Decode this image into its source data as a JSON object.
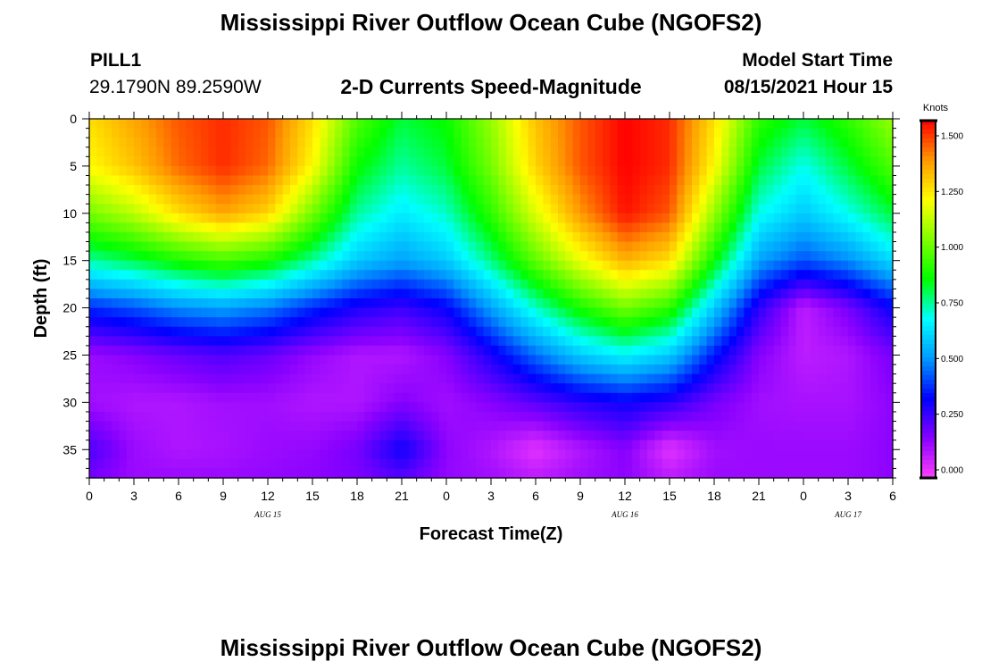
{
  "header": {
    "title_top": "Mississippi River Outflow Ocean Cube (NGOFS2)",
    "station_id": "PILL1",
    "station_coords": "29.1790N  89.2590W",
    "subtitle": "2-D Currents Speed-Magnitude",
    "model_start_label": "Model Start Time",
    "model_start_value": "08/15/2021 Hour 15",
    "title_bottom": "Mississippi River Outflow Ocean Cube (NGOFS2)"
  },
  "chart_data": {
    "type": "heatmap",
    "title": "2-D Currents Speed-Magnitude",
    "xlabel": "Forecast Time(Z)",
    "ylabel": "Depth (ft)",
    "x_tick_labels": [
      "0",
      "3",
      "6",
      "9",
      "12",
      "15",
      "18",
      "21",
      "0",
      "3",
      "6",
      "9",
      "12",
      "15",
      "18",
      "21",
      "0",
      "3",
      "6"
    ],
    "date_labels": [
      {
        "label": "AUG 15",
        "at_hour": 12
      },
      {
        "label": "AUG 16",
        "at_hour": 36
      },
      {
        "label": "AUG 17",
        "at_hour": 51
      }
    ],
    "xlim_hours": [
      0,
      54
    ],
    "y_ticks": [
      0,
      5,
      10,
      15,
      20,
      25,
      30,
      35
    ],
    "ylim": [
      38,
      0
    ],
    "colorbar": {
      "unit": "Knots",
      "ticks": [
        "0.000",
        "0.250",
        "0.500",
        "0.750",
        "1.000",
        "1.250",
        "1.500"
      ],
      "range": [
        0,
        1.6
      ],
      "colors": [
        "#ff40ff",
        "#8800ff",
        "#0000ff",
        "#0099ff",
        "#00ffff",
        "#00ff00",
        "#80ff00",
        "#ffff00",
        "#ff9900",
        "#ff0000"
      ]
    },
    "hours": [
      0,
      3,
      6,
      9,
      12,
      15,
      18,
      21,
      24,
      27,
      30,
      33,
      36,
      39,
      42,
      45,
      48,
      51,
      54
    ],
    "depths_ft": [
      0,
      5,
      10,
      15,
      20,
      25,
      30,
      35,
      38
    ],
    "speed_knots": [
      [
        1.3,
        1.4,
        1.5,
        1.55,
        1.5,
        1.3,
        1.0,
        0.85,
        0.9,
        1.1,
        1.35,
        1.5,
        1.6,
        1.55,
        1.3,
        0.95,
        0.85,
        0.95,
        1.1
      ],
      [
        1.25,
        1.35,
        1.48,
        1.55,
        1.48,
        1.25,
        0.9,
        0.78,
        0.85,
        1.05,
        1.32,
        1.5,
        1.6,
        1.55,
        1.25,
        0.85,
        0.72,
        0.85,
        1.0
      ],
      [
        1.05,
        1.15,
        1.3,
        1.4,
        1.32,
        1.05,
        0.78,
        0.68,
        0.75,
        0.95,
        1.2,
        1.42,
        1.58,
        1.5,
        1.1,
        0.72,
        0.62,
        0.72,
        0.85
      ],
      [
        0.78,
        0.84,
        0.92,
        0.98,
        0.92,
        0.78,
        0.62,
        0.55,
        0.62,
        0.8,
        1.02,
        1.22,
        1.38,
        1.3,
        0.9,
        0.55,
        0.45,
        0.52,
        0.65
      ],
      [
        0.4,
        0.45,
        0.52,
        0.55,
        0.5,
        0.4,
        0.32,
        0.28,
        0.35,
        0.55,
        0.75,
        0.92,
        1.05,
        0.95,
        0.62,
        0.3,
        0.1,
        0.2,
        0.35
      ],
      [
        0.15,
        0.18,
        0.22,
        0.25,
        0.22,
        0.16,
        0.12,
        0.12,
        0.18,
        0.32,
        0.48,
        0.62,
        0.7,
        0.62,
        0.38,
        0.18,
        0.1,
        0.12,
        0.2
      ],
      [
        0.14,
        0.12,
        0.12,
        0.14,
        0.14,
        0.12,
        0.12,
        0.18,
        0.14,
        0.18,
        0.24,
        0.3,
        0.34,
        0.3,
        0.2,
        0.14,
        0.13,
        0.13,
        0.17
      ],
      [
        0.26,
        0.15,
        0.12,
        0.13,
        0.15,
        0.16,
        0.2,
        0.34,
        0.17,
        0.12,
        0.04,
        0.12,
        0.18,
        0.04,
        0.14,
        0.15,
        0.15,
        0.15,
        0.17
      ],
      [
        0.2,
        0.15,
        0.15,
        0.15,
        0.16,
        0.17,
        0.19,
        0.24,
        0.16,
        0.14,
        0.1,
        0.14,
        0.17,
        0.1,
        0.15,
        0.15,
        0.15,
        0.15,
        0.17
      ]
    ]
  }
}
